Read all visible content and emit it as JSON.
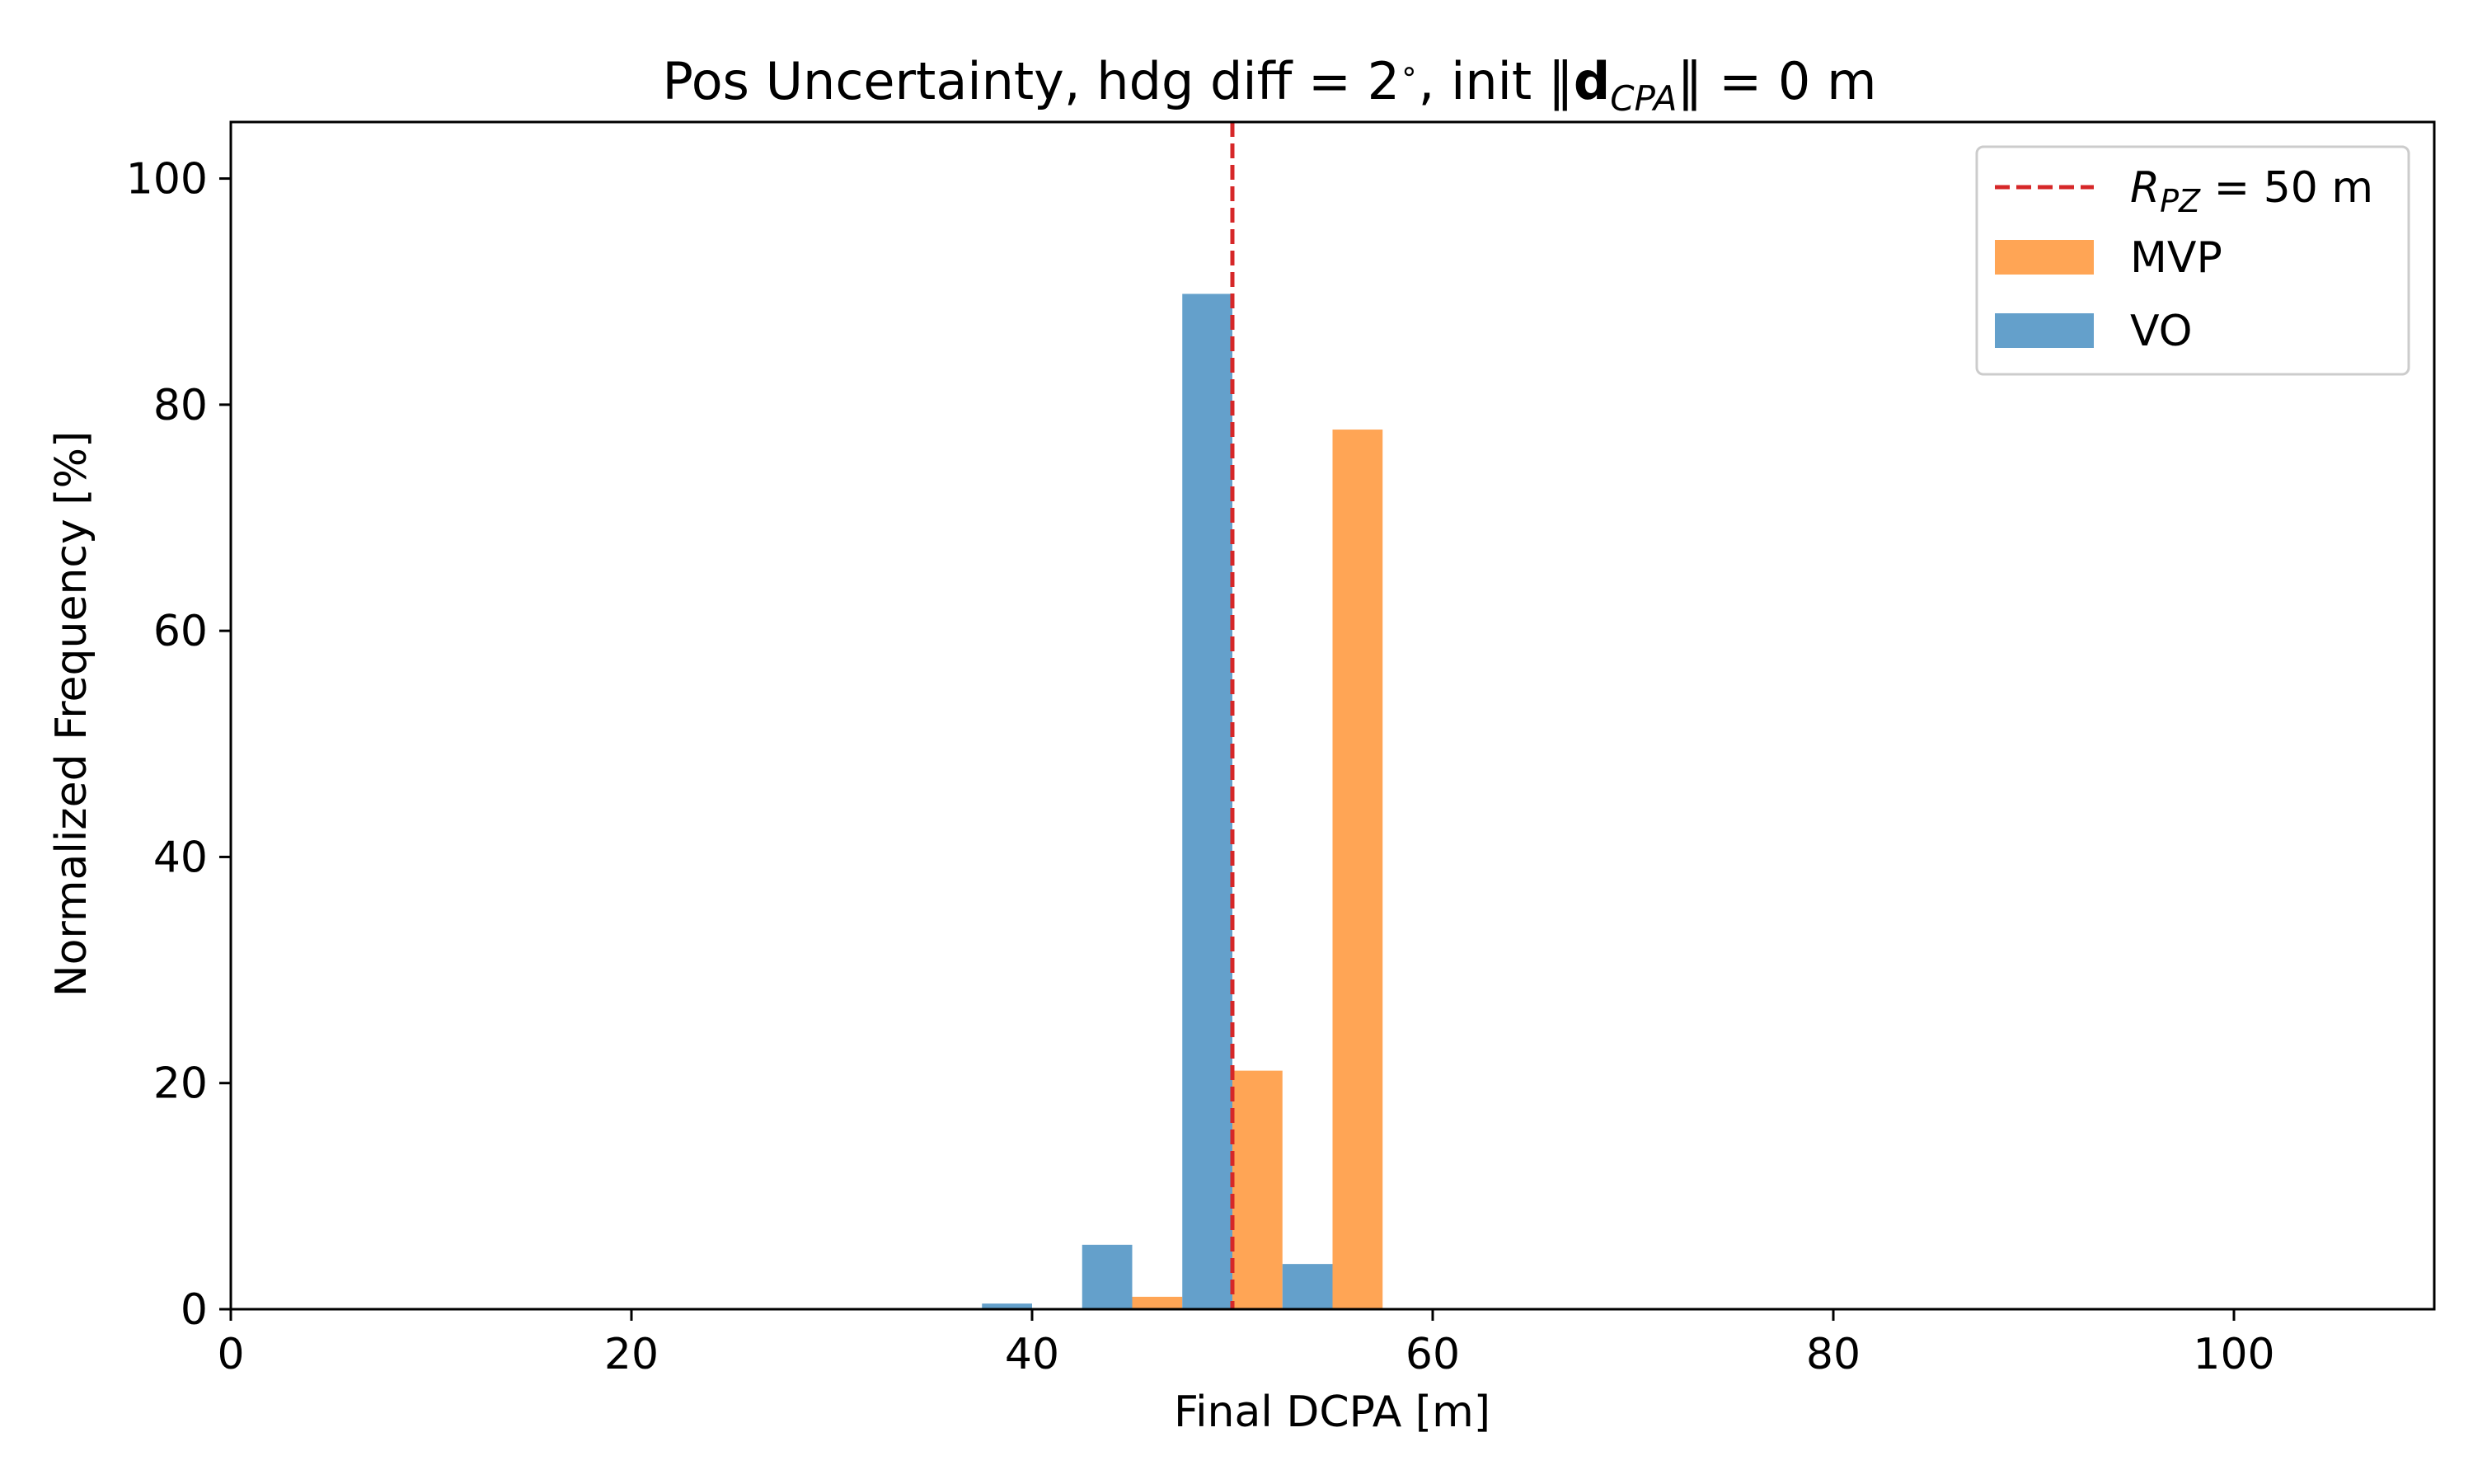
{
  "chart_data": {
    "type": "bar",
    "title": {
      "prefix": "Pos Uncertainty, hdg diff = 2",
      "degree": "∘",
      "middle": ", init ‖",
      "bold": "d",
      "sub": "CPA",
      "suffix": "‖ = 0 m"
    },
    "xlabel": "Final DCPA [m]",
    "ylabel": "Normalized Frequency [%]",
    "xlim": [
      0,
      110
    ],
    "ylim": [
      0,
      105
    ],
    "xticks": [
      0,
      20,
      40,
      60,
      80,
      100
    ],
    "yticks": [
      0,
      20,
      40,
      60,
      80,
      100
    ],
    "bin_width": 2.5,
    "series": [
      {
        "name": "MVP",
        "color": "#ffa555",
        "bars": [
          {
            "x": 46.25,
            "value": 1.1
          },
          {
            "x": 51.25,
            "value": 21.1
          },
          {
            "x": 56.25,
            "value": 77.8
          }
        ]
      },
      {
        "name": "VO",
        "color": "#64a0cb",
        "bars": [
          {
            "x": 38.75,
            "value": 0.5
          },
          {
            "x": 43.75,
            "value": 5.7
          },
          {
            "x": 48.75,
            "value": 89.8
          },
          {
            "x": 53.75,
            "value": 4.0
          }
        ]
      }
    ],
    "reference_line": {
      "x": 50,
      "color": "#d62728",
      "style": "dashed",
      "label_var": "R",
      "label_sub": "PZ",
      "label_rest": " = 50 m"
    },
    "legend": {
      "position": "top-right",
      "entries": [
        "R_PZ = 50 m",
        "MVP",
        "VO"
      ]
    },
    "grid": false
  }
}
